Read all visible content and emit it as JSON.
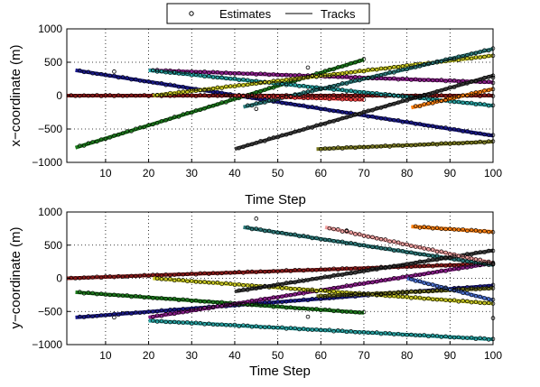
{
  "legend": {
    "items": [
      {
        "label": "Estimates",
        "marker": "circle"
      },
      {
        "label": "Tracks",
        "marker": "line"
      }
    ]
  },
  "chart_data": [
    {
      "type": "scatter",
      "title": "",
      "xlabel": "Time Step",
      "ylabel": "x−coordinate (m)",
      "xlim": [
        1,
        100
      ],
      "ylim": [
        -1000,
        1000
      ],
      "xticks": [
        "10",
        "20",
        "30",
        "40",
        "50",
        "60",
        "70",
        "80",
        "90",
        "100"
      ],
      "yticks": [
        "−1000",
        "−500",
        "0",
        "500",
        "1000"
      ],
      "grid": true,
      "tracks": [
        {
          "color": "#1a1a8c",
          "start": 3,
          "end": 100,
          "y0": 380,
          "y1": -600
        },
        {
          "color": "#8b1a1a",
          "start": 1,
          "end": 100,
          "y0": 0,
          "y1": 0
        },
        {
          "color": "#1c7a1c",
          "start": 3,
          "end": 70,
          "y0": -780,
          "y1": 540
        },
        {
          "color": "#8e1e8e",
          "start": 20,
          "end": 100,
          "y0": 380,
          "y1": 200
        },
        {
          "color": "#26a3a3",
          "start": 20,
          "end": 100,
          "y0": 380,
          "y1": -150
        },
        {
          "color": "#c8c820",
          "start": 21,
          "end": 100,
          "y0": 0,
          "y1": 600
        },
        {
          "color": "#2c7a7a",
          "start": 42,
          "end": 100,
          "y0": -170,
          "y1": 700
        },
        {
          "color": "#ff4040",
          "start": 40,
          "end": 70,
          "y0": 0,
          "y1": -60
        },
        {
          "color": "#3a3a3a",
          "start": 40,
          "end": 100,
          "y0": -800,
          "y1": 300
        },
        {
          "color": "#787820",
          "start": 59,
          "end": 100,
          "y0": -800,
          "y1": -690
        },
        {
          "color": "#ff7f0e",
          "start": 81,
          "end": 100,
          "y0": -180,
          "y1": 100
        }
      ],
      "outliers": [
        {
          "x": 12,
          "y": 360
        },
        {
          "x": 45,
          "y": -200
        },
        {
          "x": 57,
          "y": 420
        },
        {
          "x": 100,
          "y": 270
        }
      ]
    },
    {
      "type": "scatter",
      "title": "Time Step",
      "xlabel": "Time Step",
      "ylabel": "y−coordinate (m)",
      "xlim": [
        1,
        100
      ],
      "ylim": [
        -1000,
        1000
      ],
      "xticks": [
        "10",
        "20",
        "30",
        "40",
        "50",
        "60",
        "70",
        "80",
        "90",
        "100"
      ],
      "yticks": [
        "−1000",
        "−500",
        "0",
        "500",
        "1000"
      ],
      "grid": true,
      "tracks": [
        {
          "color": "#1a1a8c",
          "start": 3,
          "end": 100,
          "y0": -590,
          "y1": -110
        },
        {
          "color": "#8b1a1a",
          "start": 1,
          "end": 100,
          "y0": 0,
          "y1": 220
        },
        {
          "color": "#1c7a1c",
          "start": 3,
          "end": 70,
          "y0": -210,
          "y1": -520
        },
        {
          "color": "#8e1e8e",
          "start": 20,
          "end": 100,
          "y0": -590,
          "y1": 230
        },
        {
          "color": "#26a3a3",
          "start": 20,
          "end": 100,
          "y0": -640,
          "y1": -920
        },
        {
          "color": "#c8c820",
          "start": 21,
          "end": 100,
          "y0": 0,
          "y1": -380
        },
        {
          "color": "#2c7a7a",
          "start": 42,
          "end": 100,
          "y0": 770,
          "y1": 200
        },
        {
          "color": "#3a3a3a",
          "start": 40,
          "end": 100,
          "y0": -200,
          "y1": 420
        },
        {
          "color": "#787820",
          "start": 59,
          "end": 100,
          "y0": -270,
          "y1": -150
        },
        {
          "color": "#f4a0a0",
          "start": 61,
          "end": 100,
          "y0": 770,
          "y1": 230
        },
        {
          "color": "#ff7f0e",
          "start": 81,
          "end": 100,
          "y0": 780,
          "y1": 700
        },
        {
          "color": "#4a6fd0",
          "start": 80,
          "end": 100,
          "y0": 0,
          "y1": -330
        }
      ],
      "outliers": [
        {
          "x": 12,
          "y": -590
        },
        {
          "x": 45,
          "y": 900
        },
        {
          "x": 57,
          "y": -580
        },
        {
          "x": 66,
          "y": 720
        },
        {
          "x": 100,
          "y": -600
        }
      ]
    }
  ]
}
